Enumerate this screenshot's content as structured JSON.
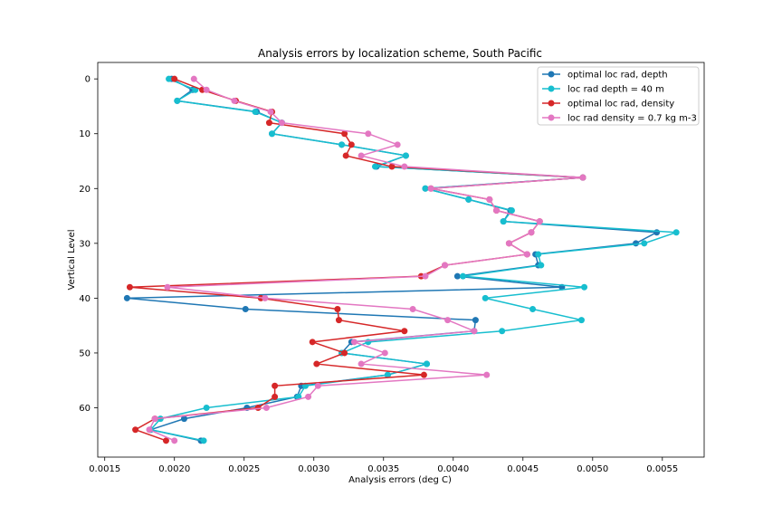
{
  "chart_data": {
    "type": "line",
    "title": "Analysis errors by localization scheme, South Pacific",
    "xlabel": "Analysis errors (deg C)",
    "ylabel": "Vertical Level",
    "xlim": [
      0.00145,
      0.0058
    ],
    "ylim": [
      69,
      -3
    ],
    "y_inverted": true,
    "x_ticks": [
      "0.0015",
      "0.0020",
      "0.0025",
      "0.0030",
      "0.0035",
      "0.0040",
      "0.0045",
      "0.0050",
      "0.0055"
    ],
    "x_tick_values": [
      0.0015,
      0.002,
      0.0025,
      0.003,
      0.0035,
      0.004,
      0.0045,
      0.005,
      0.0055
    ],
    "y_ticks": [
      "0",
      "10",
      "20",
      "30",
      "40",
      "50",
      "60"
    ],
    "y_tick_values": [
      0,
      10,
      20,
      30,
      40,
      50,
      60
    ],
    "grid": false,
    "legend_position": "upper-right",
    "y": [
      0,
      2,
      4,
      6,
      8,
      10,
      12,
      14,
      16,
      18,
      20,
      22,
      24,
      26,
      28,
      30,
      32,
      34,
      36,
      38,
      40,
      42,
      44,
      46,
      48,
      50,
      52,
      54,
      56,
      58,
      60,
      62,
      64,
      66
    ],
    "series": [
      {
        "name": "optimal loc rad, depth",
        "color": "#1f77b4",
        "x": [
          0.00198,
          0.00213,
          0.00202,
          0.00259,
          0.00277,
          0.0027,
          0.0032,
          0.00366,
          0.00345,
          0.00493,
          0.0038,
          0.00411,
          0.00441,
          0.00436,
          0.00546,
          0.00531,
          0.00459,
          0.00461,
          0.00403,
          0.00478,
          0.00166,
          0.00251,
          0.00416,
          0.00415,
          0.00327,
          0.0032,
          0.00381,
          0.00353,
          0.00291,
          0.00288,
          0.00252,
          0.00207,
          0.00183,
          0.00219
        ]
      },
      {
        "name": "loc rad depth = 40 m",
        "color": "#17becf",
        "x": [
          0.00196,
          0.00215,
          0.00202,
          0.00258,
          0.00277,
          0.0027,
          0.0032,
          0.00366,
          0.00344,
          0.00493,
          0.0038,
          0.00411,
          0.00442,
          0.00436,
          0.0056,
          0.00537,
          0.00461,
          0.00463,
          0.00407,
          0.00494,
          0.00423,
          0.00457,
          0.00492,
          0.00435,
          0.00339,
          0.0032,
          0.00381,
          0.00353,
          0.00294,
          0.00289,
          0.00223,
          0.0019,
          0.00183,
          0.00221
        ]
      },
      {
        "name": "optimal loc rad, density",
        "color": "#d62728",
        "x": [
          0.002,
          0.0022,
          0.00244,
          0.0027,
          0.00268,
          0.00322,
          0.00327,
          0.00323,
          0.00356,
          0.00493,
          0.00384,
          0.00426,
          0.00431,
          0.00462,
          0.00456,
          0.0044,
          0.00453,
          0.00394,
          0.00377,
          0.00168,
          0.00262,
          0.00317,
          0.00318,
          0.00365,
          0.00299,
          0.00322,
          0.00302,
          0.00379,
          0.00272,
          0.00272,
          0.0026,
          0.00186,
          0.00172,
          0.00194
        ]
      },
      {
        "name": "loc rad density = 0.7 kg m-3",
        "color": "#e377c2",
        "x": [
          0.00214,
          0.00223,
          0.00243,
          0.00269,
          0.00277,
          0.00339,
          0.0036,
          0.00334,
          0.00365,
          0.00493,
          0.00384,
          0.00426,
          0.00431,
          0.00462,
          0.00456,
          0.0044,
          0.00453,
          0.00394,
          0.0038,
          0.00195,
          0.00265,
          0.00371,
          0.00396,
          0.00415,
          0.00329,
          0.00351,
          0.00334,
          0.00424,
          0.00303,
          0.00296,
          0.00266,
          0.00186,
          0.00182,
          0.002
        ]
      }
    ]
  }
}
